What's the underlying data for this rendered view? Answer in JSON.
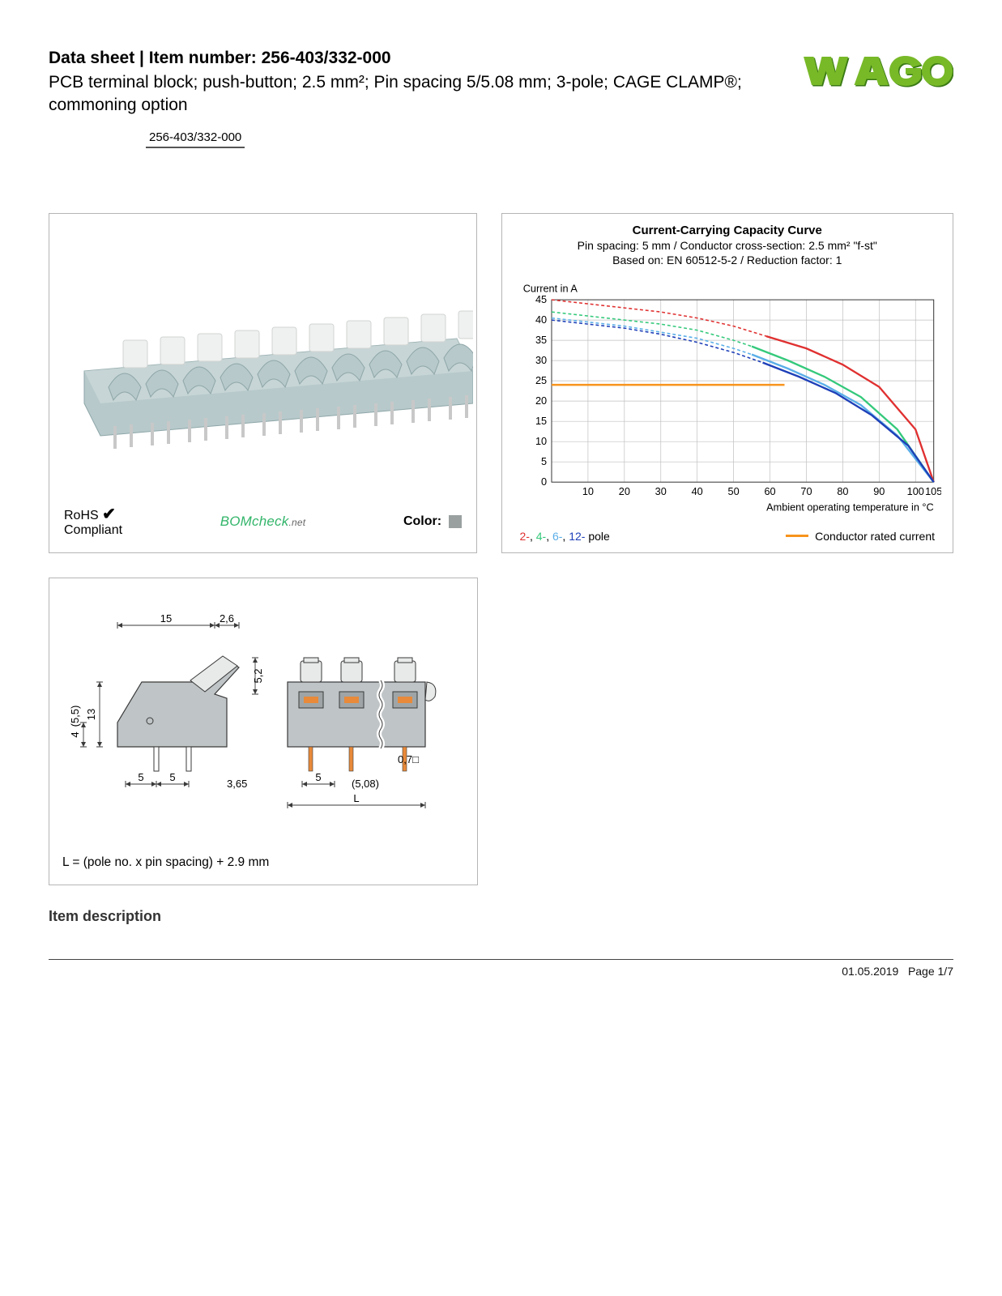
{
  "header": {
    "title_prefix": "Data sheet  |  Item number: ",
    "item_number": "256-403/332-000",
    "subtitle": "PCB terminal block; push-button; 2.5 mm²; Pin spacing 5/5.08 mm; 3-pole; CAGE CLAMP®; commoning option",
    "item_chip": "256-403/332-000"
  },
  "logo": {
    "text": "WAGO",
    "fill": "#78b928",
    "shadow": "#3a7a15"
  },
  "product_panel": {
    "rohs_line1": "RoHS",
    "rohs_line2": "Compliant",
    "bomcheck": "BOMcheck",
    "bomcheck_suffix": ".net",
    "color_label": "Color:",
    "swatch_color": "#9aa0a0",
    "block_body": "#b7c9cb",
    "block_highlight": "#d7e1e2",
    "button_color": "#eef1ef",
    "pin_color": "#c8c8c8"
  },
  "chart": {
    "title": "Current-Carrying Capacity Curve",
    "sub1": "Pin spacing: 5 mm / Conductor cross-section: 2.5 mm² \"f-st\"",
    "sub2": "Based on: EN 60512-5-2 / Reduction factor: 1",
    "y_label": "Current in A",
    "x_label": "Ambient operating temperature in °C",
    "y_ticks": [
      0,
      5,
      10,
      15,
      20,
      25,
      30,
      35,
      40,
      45
    ],
    "x_ticks": [
      0,
      10,
      20,
      30,
      40,
      50,
      60,
      70,
      80,
      90,
      100,
      105
    ],
    "grid_color": "#bfbfbf",
    "background_color": "#ffffff",
    "font_size_axis": 13,
    "series": [
      {
        "name": "2-pole",
        "color": "#e03030",
        "dash": "4 3",
        "solid_from": 59,
        "points": [
          [
            0,
            45
          ],
          [
            10,
            44
          ],
          [
            20,
            43
          ],
          [
            30,
            42
          ],
          [
            40,
            40.5
          ],
          [
            50,
            38.5
          ],
          [
            59,
            36
          ],
          [
            70,
            33
          ],
          [
            80,
            29
          ],
          [
            90,
            23.5
          ],
          [
            100,
            13
          ],
          [
            105,
            0
          ]
        ]
      },
      {
        "name": "4-pole",
        "color": "#34c97b",
        "dash": "4 3",
        "solid_from": 55,
        "points": [
          [
            0,
            42
          ],
          [
            10,
            41
          ],
          [
            20,
            40
          ],
          [
            30,
            39
          ],
          [
            40,
            37.5
          ],
          [
            50,
            35
          ],
          [
            55,
            33.5
          ],
          [
            65,
            30
          ],
          [
            75,
            26
          ],
          [
            85,
            21
          ],
          [
            95,
            13
          ],
          [
            105,
            0
          ]
        ]
      },
      {
        "name": "6-pole",
        "color": "#5aaee8",
        "dash": "4 3",
        "solid_from": 55,
        "points": [
          [
            0,
            40.5
          ],
          [
            10,
            39.5
          ],
          [
            20,
            38.5
          ],
          [
            30,
            37
          ],
          [
            40,
            35.5
          ],
          [
            50,
            33
          ],
          [
            55,
            31.5
          ],
          [
            65,
            28
          ],
          [
            75,
            24
          ],
          [
            85,
            19
          ],
          [
            95,
            11.5
          ],
          [
            105,
            0
          ]
        ]
      },
      {
        "name": "12-pole",
        "color": "#1e3fb8",
        "dash": "4 3",
        "solid_from": 58,
        "points": [
          [
            0,
            40
          ],
          [
            10,
            39
          ],
          [
            20,
            38
          ],
          [
            30,
            36.5
          ],
          [
            40,
            34.5
          ],
          [
            50,
            32
          ],
          [
            58,
            29.5
          ],
          [
            68,
            26
          ],
          [
            78,
            22
          ],
          [
            88,
            16.5
          ],
          [
            98,
            9
          ],
          [
            105,
            0
          ]
        ]
      }
    ],
    "rated_line": {
      "color": "#f7941d",
      "y": 24,
      "x_end": 64
    },
    "legend": {
      "p2": "2-",
      "p4": "4-",
      "p6": "6-",
      "p12": "12-",
      "pole_suffix": " pole",
      "sep": ", ",
      "rated": "Conductor rated current"
    }
  },
  "dim_panel": {
    "labels": {
      "w15": "15",
      "w2_6": "2,6",
      "h5_2": "5,2",
      "h13": "13",
      "h5_5": "(5,5)",
      "h4": "4",
      "p5a": "5",
      "p5b": "5",
      "w3_65": "3,65",
      "p5c": "5",
      "p5_08": "(5,08)",
      "sq": "0,7",
      "L": "L"
    },
    "footer": "L = (pole no. x pin spacing) + 2.9 mm",
    "colors": {
      "outline": "#3a3a3a",
      "body": "#bfc4c6",
      "shade": "#9fa5a7",
      "accent": "#e88a3a",
      "bg": "#ffffff"
    }
  },
  "section_heading": "Item description",
  "footer": {
    "date": "01.05.2019",
    "page": "Page 1/7"
  }
}
